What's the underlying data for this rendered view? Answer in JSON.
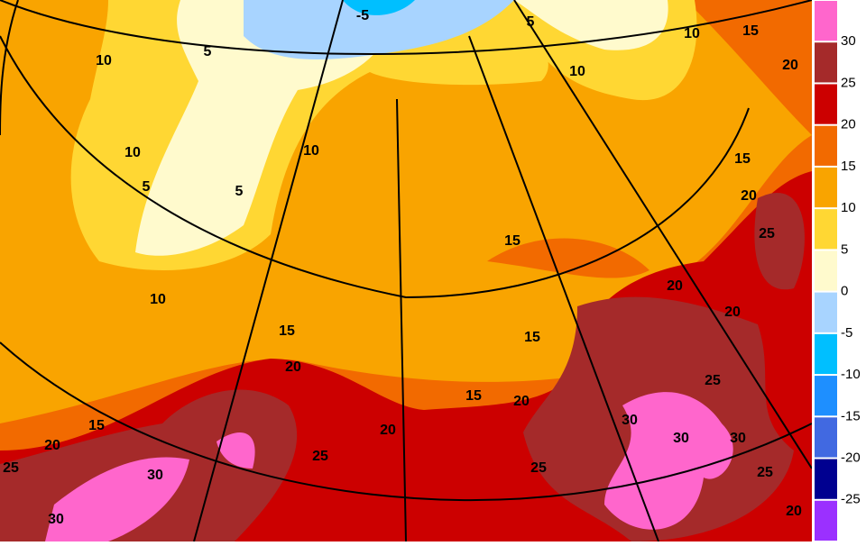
{
  "contour_labels": [
    "-5",
    "5",
    "10",
    "15",
    "20",
    "10",
    "5",
    "10",
    "10",
    "10",
    "5",
    "5",
    "15",
    "20",
    "25",
    "15",
    "20",
    "20",
    "10",
    "15",
    "15",
    "20",
    "25",
    "15",
    "20",
    "30",
    "15",
    "20",
    "30",
    "30",
    "20",
    "25",
    "25",
    "25",
    "25",
    "30",
    "30",
    "20"
  ],
  "colorbar": {
    "levels": [
      30,
      25,
      20,
      15,
      10,
      5,
      0,
      -5,
      -10,
      -15,
      -20,
      -25
    ],
    "colors": [
      "#ff66cc",
      "#a52a2a",
      "#cc0000",
      "#f26a00",
      "#f9a400",
      "#ffd733",
      "#fffacd",
      "#a8d4ff",
      "#00bfff",
      "#1e8fff",
      "#4169e1",
      "#000090",
      "#9b30ff"
    ]
  }
}
